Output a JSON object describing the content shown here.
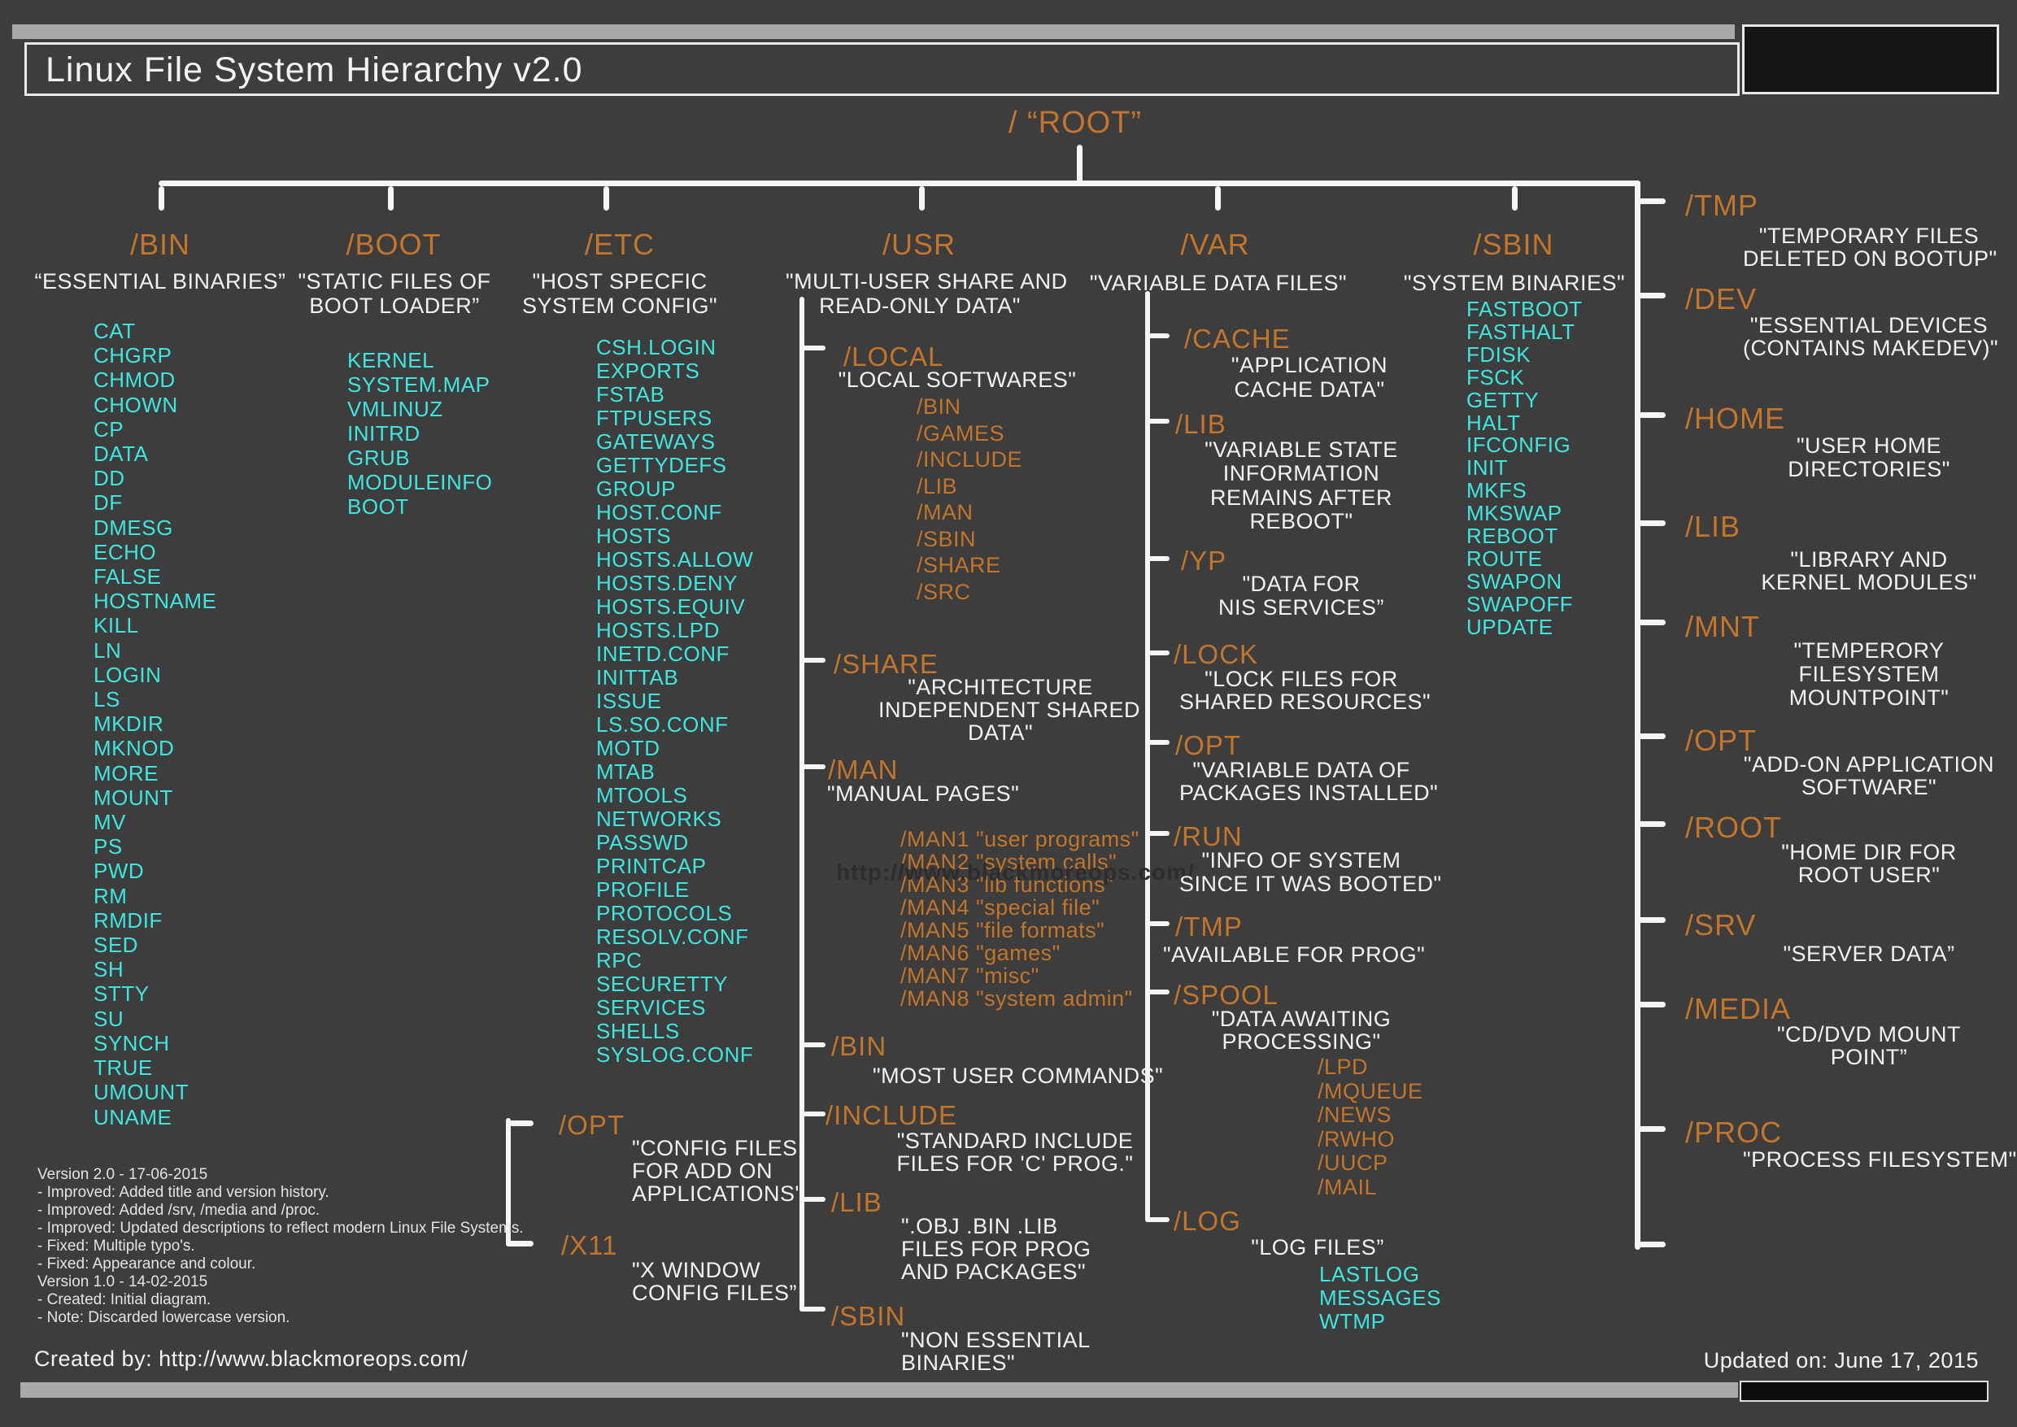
{
  "title": "Linux File System Hierarchy v2.0",
  "root_label": "/ “ROOT”",
  "watermark": "http://www.blackmoreops.com/",
  "footer": {
    "created_by": "Created by: http://www.blackmoreops.com/",
    "updated_on": "Updated on: June 17, 2015"
  },
  "version_history": [
    "Version 2.0 - 17-06-2015",
    "- Improved: Added title and version history.",
    "- Improved: Added /srv, /media and /proc.",
    "- Improved: Updated descriptions to reflect modern Linux File Systems.",
    "- Fixed: Multiple typo's.",
    "- Fixed: Appearance and colour.",
    "Version 1.0 - 14-02-2015",
    "- Created: Initial diagram.",
    "- Note: Discarded lowercase version."
  ],
  "bin": {
    "name": "/BIN",
    "desc": "“ESSENTIAL BINARIES”",
    "items": [
      "CAT",
      "CHGRP",
      "CHMOD",
      "CHOWN",
      "CP",
      "DATA",
      "DD",
      "DF",
      "DMESG",
      "ECHO",
      "FALSE",
      "HOSTNAME",
      "KILL",
      "LN",
      "LOGIN",
      "LS",
      "MKDIR",
      "MKNOD",
      "MORE",
      "MOUNT",
      "MV",
      "PS",
      "PWD",
      "RM",
      "RMDIF",
      "SED",
      "SH",
      "STTY",
      "SU",
      "SYNCH",
      "TRUE",
      "UMOUNT",
      "UNAME"
    ]
  },
  "boot": {
    "name": "/BOOT",
    "desc": [
      "\"STATIC FILES OF",
      "BOOT LOADER”"
    ],
    "items": [
      "KERNEL",
      "SYSTEM.MAP",
      "VMLINUZ",
      "INITRD",
      "GRUB",
      "MODULEINFO",
      "BOOT"
    ]
  },
  "etc": {
    "name": "/ETC",
    "desc": [
      "\"HOST SPECFIC",
      "SYSTEM CONFIG\""
    ],
    "items": [
      "CSH.LOGIN",
      "EXPORTS",
      "FSTAB",
      "FTPUSERS",
      "GATEWAYS",
      "GETTYDEFS",
      "GROUP",
      "HOST.CONF",
      "HOSTS",
      "HOSTS.ALLOW",
      "HOSTS.DENY",
      "HOSTS.EQUIV",
      "HOSTS.LPD",
      "INETD.CONF",
      "INITTAB",
      "ISSUE",
      "LS.SO.CONF",
      "MOTD",
      "MTAB",
      "MTOOLS",
      "NETWORKS",
      "PASSWD",
      "PRINTCAP",
      "PROFILE",
      "PROTOCOLS",
      "RESOLV.CONF",
      "RPC",
      "SECURETTY",
      "SERVICES",
      "SHELLS",
      "SYSLOG.CONF"
    ],
    "opt": {
      "name": "/OPT",
      "desc": [
        "\"CONFIG FILES",
        "FOR ADD ON",
        "APPLICATIONS\""
      ]
    },
    "x11": {
      "name": "/X11",
      "desc": [
        "\"X WINDOW",
        "CONFIG FILES”"
      ]
    }
  },
  "usr": {
    "name": "/USR",
    "desc": [
      "\"MULTI-USER SHARE AND",
      "READ-ONLY DATA\""
    ],
    "local": {
      "name": "/LOCAL",
      "desc": "\"LOCAL SOFTWARES\"",
      "subdirs": [
        "/BIN",
        "/GAMES",
        "/INCLUDE",
        "/LIB",
        "/MAN",
        "/SBIN",
        "/SHARE",
        "/SRC"
      ]
    },
    "share": {
      "name": "/SHARE",
      "desc": [
        "\"ARCHITECTURE",
        "INDEPENDENT SHARED",
        "DATA\""
      ]
    },
    "man": {
      "name": "/MAN",
      "desc": "\"MANUAL PAGES\"",
      "items": [
        "/MAN1 \"user programs\"",
        "/MAN2 \"system calls\"",
        "/MAN3 \"lib functions\"",
        "/MAN4 \"special file\"",
        "/MAN5 \"file formats\"",
        "/MAN6 \"games\"",
        "/MAN7 \"misc\"",
        "/MAN8 \"system admin\""
      ]
    },
    "bin": {
      "name": "/BIN",
      "desc": [
        "\"MOST USER COMMANDS\""
      ]
    },
    "include": {
      "name": "/INCLUDE",
      "desc": [
        "\"STANDARD INCLUDE",
        "FILES FOR 'C' PROG.\""
      ]
    },
    "lib": {
      "name": "/LIB",
      "desc": [
        "\".OBJ .BIN .LIB",
        "FILES FOR PROG",
        "AND PACKAGES\""
      ]
    },
    "sbin": {
      "name": "/SBIN",
      "desc": [
        "\"NON ESSENTIAL",
        "BINARIES\""
      ]
    }
  },
  "var": {
    "name": "/VAR",
    "desc": "\"VARIABLE DATA FILES\"",
    "cache": {
      "name": "/CACHE",
      "desc": [
        "\"APPLICATION",
        "CACHE DATA\""
      ]
    },
    "lib": {
      "name": "/LIB",
      "desc": [
        "\"VARIABLE STATE",
        "INFORMATION",
        "REMAINS AFTER",
        "REBOOT\""
      ]
    },
    "yp": {
      "name": "/YP",
      "desc": [
        "\"DATA FOR",
        "NIS SERVICES”"
      ]
    },
    "lock": {
      "name": "/LOCK",
      "desc": [
        "\"LOCK FILES FOR",
        "SHARED RESOURCES\""
      ]
    },
    "opt": {
      "name": "/OPT",
      "desc": [
        "\"VARIABLE DATA OF",
        "PACKAGES INSTALLED\""
      ]
    },
    "run": {
      "name": "/RUN",
      "desc": [
        "\"INFO OF SYSTEM",
        "SINCE IT WAS BOOTED\""
      ]
    },
    "tmp": {
      "name": "/TMP",
      "desc": [
        "\"AVAILABLE FOR PROG\""
      ]
    },
    "spool": {
      "name": "/SPOOL",
      "desc": [
        "\"DATA AWAITING",
        "PROCESSING\""
      ],
      "subdirs": [
        "/LPD",
        "/MQUEUE",
        "/NEWS",
        "/RWHO",
        "/UUCP",
        "/MAIL"
      ]
    },
    "log": {
      "name": "/LOG",
      "desc": [
        "\"LOG FILES”"
      ],
      "items": [
        "LASTLOG",
        "MESSAGES",
        "WTMP"
      ]
    }
  },
  "sbin": {
    "name": "/SBIN",
    "desc": "\"SYSTEM BINARIES\"",
    "items": [
      "FASTBOOT",
      "FASTHALT",
      "FDISK",
      "FSCK",
      "GETTY",
      "HALT",
      "IFCONFIG",
      "INIT",
      "MKFS",
      "MKSWAP",
      "REBOOT",
      "ROUTE",
      "SWAPON",
      "SWAPOFF",
      "UPDATE"
    ]
  },
  "rail": {
    "items": [
      {
        "name": "/TMP",
        "desc": [
          "\"TEMPORARY FILES",
          "DELETED ON BOOTUP\""
        ]
      },
      {
        "name": "/DEV",
        "desc": [
          "\"ESSENTIAL DEVICES",
          "(CONTAINS MAKEDEV)\""
        ]
      },
      {
        "name": "/HOME",
        "desc": [
          "\"USER HOME",
          "DIRECTORIES\""
        ]
      },
      {
        "name": "/LIB",
        "desc": [
          "\"LIBRARY AND",
          "KERNEL MODULES\""
        ]
      },
      {
        "name": "/MNT",
        "desc": [
          "\"TEMPERORY",
          "FILESYSTEM",
          "MOUNTPOINT\""
        ]
      },
      {
        "name": "/OPT",
        "desc": [
          "\"ADD-ON APPLICATION",
          "SOFTWARE\""
        ]
      },
      {
        "name": "/ROOT",
        "desc": [
          "\"HOME DIR FOR",
          "ROOT USER\""
        ]
      },
      {
        "name": "/SRV",
        "desc": [
          "\"SERVER DATA”"
        ]
      },
      {
        "name": "/MEDIA",
        "desc": [
          "\"CD/DVD MOUNT",
          "POINT”"
        ]
      },
      {
        "name": "/PROC",
        "desc": [
          "\"PROCESS FILESYSTEM\""
        ]
      }
    ]
  },
  "colors": {
    "orange": "#c2752b",
    "cyan": "#3fe6df",
    "white": "#f2f2f2"
  }
}
